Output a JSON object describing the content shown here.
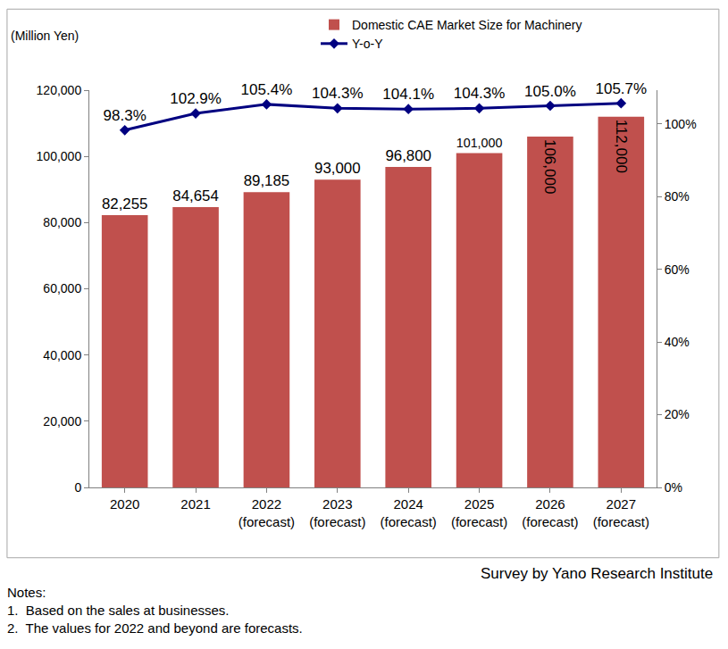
{
  "chart_data": {
    "type": "bar",
    "ylabel": "(Million Yen)",
    "categories": [
      "2020",
      "2021",
      "2022 (forecast)",
      "2023 (forecast)",
      "2024 (forecast)",
      "2025 (forecast)",
      "2026 (forecast)",
      "2027 (forecast)"
    ],
    "series": [
      {
        "name": "Domestic CAE Market Size for Machinery",
        "type": "bar",
        "color": "#c0504d",
        "values": [
          82255,
          84654,
          89185,
          93000,
          96800,
          101000,
          106000,
          112000
        ],
        "value_labels": [
          "82,255",
          "84,654",
          "89,185",
          "93,000",
          "96,800",
          "101,000",
          "106,000",
          "112,000"
        ]
      },
      {
        "name": "Y-o-Y",
        "type": "line",
        "axis": "y2",
        "color": "#000080",
        "marker": "diamond",
        "values": [
          98.3,
          102.9,
          105.4,
          104.3,
          104.1,
          104.3,
          105.0,
          105.7
        ],
        "value_labels": [
          "98.3%",
          "102.9%",
          "105.4%",
          "104.3%",
          "104.1%",
          "104.3%",
          "105.0%",
          "105.7%"
        ]
      }
    ],
    "ylim": [
      0,
      120000
    ],
    "yticks": [
      0,
      {
        "value": 20000,
        "label": "20,000"
      },
      {
        "value": 40000,
        "label": "40,000"
      },
      {
        "value": 60000,
        "label": "60,000"
      },
      {
        "value": 80000,
        "label": "80,000"
      },
      {
        "value": 100000,
        "label": "100,000"
      },
      {
        "value": 120000,
        "label": "120,000"
      }
    ],
    "y2lim": [
      0,
      109.3
    ],
    "y2ticks": [
      {
        "value": 0,
        "label": "0%"
      },
      {
        "value": 20,
        "label": "20%"
      },
      {
        "value": 40,
        "label": "40%"
      },
      {
        "value": 60,
        "label": "60%"
      },
      {
        "value": 80,
        "label": "80%"
      },
      {
        "value": 100,
        "label": "100%"
      }
    ],
    "data_labels": true,
    "grid": false,
    "legend": "top",
    "source": "Survey by Yano Research Institute",
    "notes": [
      "Notes:",
      "1.  Based on the sales at businesses.",
      "2.  The values for 2022 and beyond are forecasts."
    ]
  }
}
